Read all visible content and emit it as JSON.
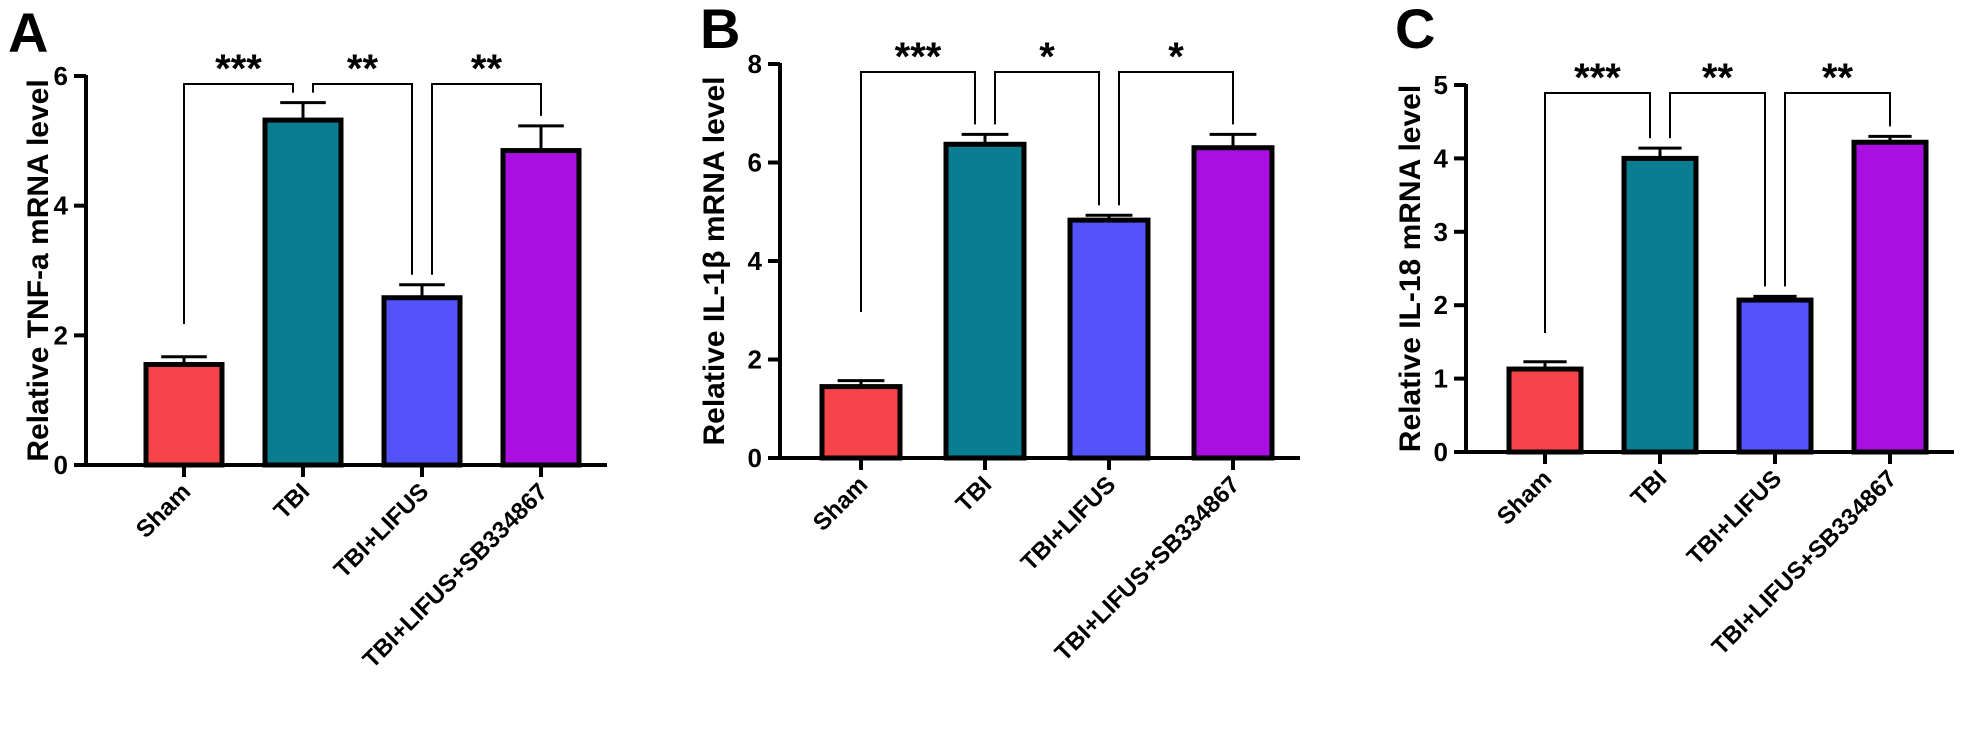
{
  "chart_data": [
    {
      "type": "bar",
      "panel": "A",
      "ylabel": "Relative TNF-a mRNA level",
      "categories": [
        "Sham",
        "TBI",
        "TBI+LIFUS",
        "TBI+LIFUS+SB334867"
      ],
      "values": [
        1.55,
        5.32,
        2.58,
        4.85
      ],
      "errors": [
        0.12,
        0.27,
        0.2,
        0.38
      ],
      "colors": [
        "#f7434a",
        "#0b7d90",
        "#5453fb",
        "#a90fe0"
      ],
      "ylim": [
        0,
        6
      ],
      "yticks": [
        0,
        2,
        4,
        6
      ],
      "significance": [
        {
          "from": 0,
          "to": 1,
          "label": "***"
        },
        {
          "from": 1,
          "to": 2,
          "label": "**"
        },
        {
          "from": 2,
          "to": 3,
          "label": "**"
        }
      ]
    },
    {
      "type": "bar",
      "panel": "B",
      "ylabel": "Relative IL-1β mRNA level",
      "categories": [
        "Sham",
        "TBI",
        "TBI+LIFUS",
        "TBI+LIFUS+SB334867"
      ],
      "values": [
        1.45,
        6.37,
        4.83,
        6.3
      ],
      "errors": [
        0.12,
        0.2,
        0.1,
        0.27
      ],
      "colors": [
        "#f7434a",
        "#0b7d90",
        "#5453fb",
        "#a90fe0"
      ],
      "ylim": [
        0,
        8
      ],
      "yticks": [
        0,
        2,
        4,
        6,
        8
      ],
      "significance": [
        {
          "from": 0,
          "to": 1,
          "label": "***"
        },
        {
          "from": 1,
          "to": 2,
          "label": "*"
        },
        {
          "from": 2,
          "to": 3,
          "label": "*"
        }
      ]
    },
    {
      "type": "bar",
      "panel": "C",
      "ylabel": "Relative IL-18 mRNA level",
      "categories": [
        "Sham",
        "TBI",
        "TBI+LIFUS",
        "TBI+LIFUS+SB334867"
      ],
      "values": [
        1.13,
        4.0,
        2.07,
        4.22
      ],
      "errors": [
        0.1,
        0.14,
        0.05,
        0.08
      ],
      "colors": [
        "#f7434a",
        "#0b7d90",
        "#5453fb",
        "#a90fe0"
      ],
      "ylim": [
        0,
        5
      ],
      "yticks": [
        0,
        1,
        2,
        3,
        4,
        5
      ],
      "significance": [
        {
          "from": 0,
          "to": 1,
          "label": "***"
        },
        {
          "from": 1,
          "to": 2,
          "label": "**"
        },
        {
          "from": 2,
          "to": 3,
          "label": "**"
        }
      ]
    }
  ]
}
